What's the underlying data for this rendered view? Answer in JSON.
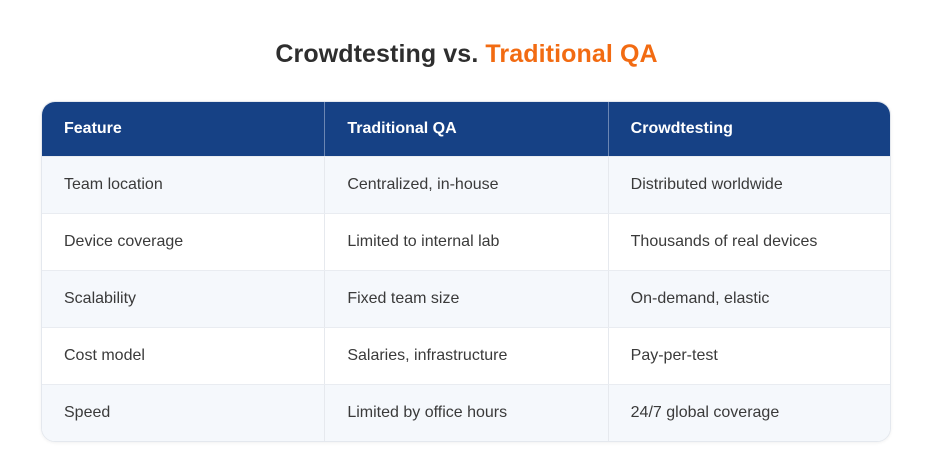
{
  "title": {
    "part1": "Crowdtesting vs. ",
    "part2": "Traditional QA",
    "accent_color": "#f26b12"
  },
  "table": {
    "header_color": "#164185",
    "columns": [
      "Feature",
      "Traditional QA",
      "Crowdtesting"
    ],
    "rows": [
      [
        "Team location",
        "Centralized, in-house",
        "Distributed worldwide"
      ],
      [
        "Device coverage",
        "Limited to internal lab",
        "Thousands of real devices"
      ],
      [
        "Scalability",
        "Fixed team size",
        "On-demand, elastic"
      ],
      [
        "Cost model",
        "Salaries, infrastructure",
        "Pay-per-test"
      ],
      [
        "Speed",
        "Limited by office hours",
        "24/7 global coverage"
      ]
    ]
  }
}
